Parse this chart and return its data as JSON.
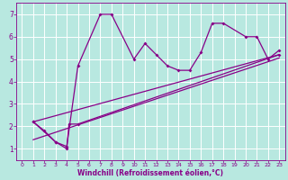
{
  "xlabel": "Windchill (Refroidissement éolien,°C)",
  "bg_color": "#b8e8e0",
  "line_color": "#880088",
  "xlim": [
    -0.5,
    23.5
  ],
  "ylim": [
    0.5,
    7.5
  ],
  "xticks": [
    0,
    1,
    2,
    3,
    4,
    5,
    6,
    7,
    8,
    9,
    10,
    11,
    12,
    13,
    14,
    15,
    16,
    17,
    18,
    19,
    20,
    21,
    22,
    23
  ],
  "yticks": [
    1,
    2,
    3,
    4,
    5,
    6,
    7
  ],
  "series1_x": [
    1,
    2,
    3,
    4,
    5,
    7,
    8,
    10,
    11,
    12,
    13,
    14,
    15,
    16,
    17,
    18,
    20,
    21,
    22,
    23
  ],
  "series1_y": [
    2.2,
    1.8,
    1.3,
    1.1,
    4.7,
    7.0,
    7.0,
    5.0,
    5.7,
    5.2,
    4.7,
    4.5,
    4.5,
    5.3,
    6.6,
    6.6,
    6.0,
    6.0,
    5.0,
    5.4
  ],
  "series2_x": [
    1,
    3,
    4,
    4.2,
    5,
    23
  ],
  "series2_y": [
    2.2,
    1.3,
    1.0,
    2.1,
    2.1,
    5.2
  ],
  "series3_x": [
    1,
    23
  ],
  "series3_y": [
    2.2,
    5.2
  ],
  "series4_x": [
    1,
    23
  ],
  "series4_y": [
    1.4,
    5.05
  ],
  "xlabel_fontsize": 5.5,
  "tick_fontsize_x": 4.5,
  "tick_fontsize_y": 5.5,
  "grid_color": "#ffffff",
  "grid_lw": 0.7
}
